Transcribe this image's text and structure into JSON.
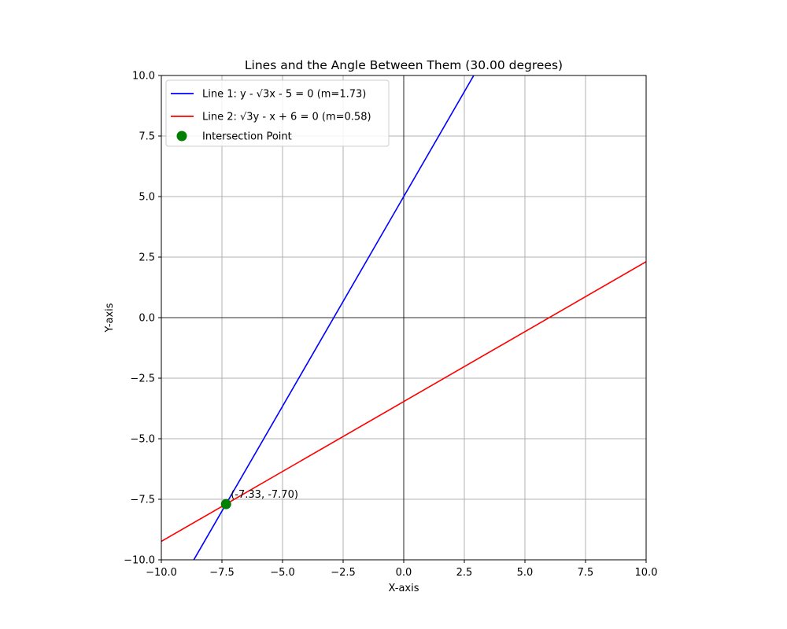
{
  "chart_data": {
    "type": "line",
    "title": "Lines and the Angle Between Them (30.00 degrees)",
    "xlabel": "X-axis",
    "ylabel": "Y-axis",
    "xlim": [
      -10,
      10
    ],
    "ylim": [
      -10,
      10
    ],
    "grid": true,
    "legend_position": "top-left",
    "xticks": [
      -10,
      -7.5,
      -5,
      -2.5,
      0,
      2.5,
      5,
      7.5,
      10
    ],
    "yticks": [
      -10,
      -7.5,
      -5,
      -2.5,
      0,
      2.5,
      5,
      7.5,
      10
    ],
    "xtick_labels": [
      "−10.0",
      "−7.5",
      "−5.0",
      "−2.5",
      "0.0",
      "2.5",
      "5.0",
      "7.5",
      "10.0"
    ],
    "ytick_labels": [
      "−10.0",
      "−7.5",
      "−5.0",
      "−2.5",
      "0.0",
      "2.5",
      "5.0",
      "7.5",
      "10.0"
    ],
    "series": [
      {
        "name": "Line 1: y - √3x - 5 = 0 (m=1.73)",
        "color": "#0000ff",
        "slope": 1.7320508,
        "intercept": 5,
        "x": [
          -10,
          10
        ],
        "y": [
          -12.32,
          22.32
        ]
      },
      {
        "name": "Line 2: √3y - x + 6 = 0 (m=0.58)",
        "color": "#ff0000",
        "slope": 0.5773503,
        "intercept": -3.4641016,
        "x": [
          -10,
          10
        ],
        "y": [
          -9.24,
          2.31
        ]
      }
    ],
    "points": [
      {
        "name": "Intersection Point",
        "color": "#008000",
        "x": -7.33,
        "y": -7.7,
        "label": "(-7.33, -7.70)"
      }
    ],
    "reference_lines": {
      "x": 0,
      "y": 0,
      "color": "#000000"
    }
  }
}
